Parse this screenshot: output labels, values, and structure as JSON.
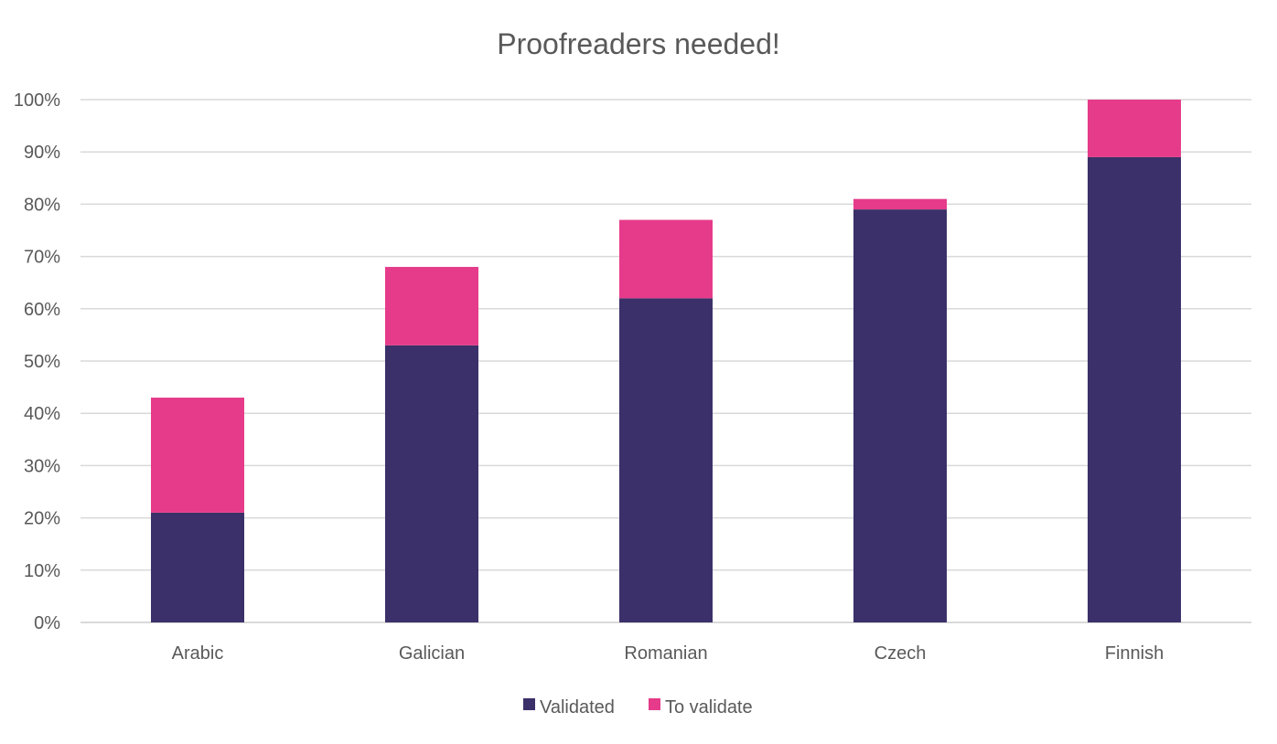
{
  "chart_data": {
    "type": "bar",
    "stacked": true,
    "title": "Proofreaders needed!",
    "xlabel": "",
    "ylabel": "",
    "categories": [
      "Arabic",
      "Galician",
      "Romanian",
      "Czech",
      "Finnish"
    ],
    "series": [
      {
        "name": "Validated",
        "color": "#3b3069",
        "values": [
          21,
          53,
          62,
          79,
          89
        ]
      },
      {
        "name": "To validate",
        "color": "#e63b8a",
        "values": [
          22,
          15,
          15,
          2,
          11
        ]
      }
    ],
    "ylim": [
      0,
      100
    ],
    "y_ticks": [
      "0%",
      "10%",
      "20%",
      "30%",
      "40%",
      "50%",
      "60%",
      "70%",
      "80%",
      "90%",
      "100%"
    ],
    "grid": true,
    "legend_position": "bottom"
  }
}
